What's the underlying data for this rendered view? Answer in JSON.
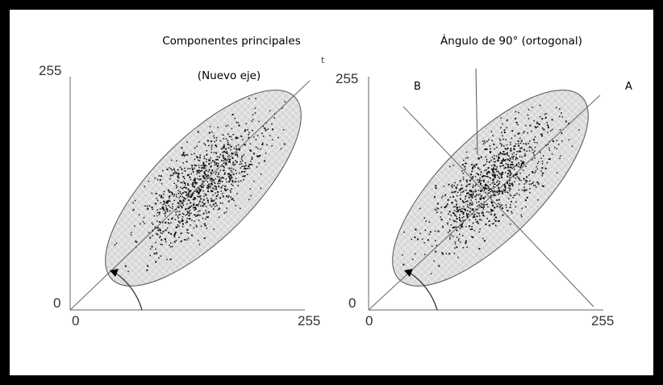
{
  "left_panel": {
    "title": "Componentes principales",
    "subtitle": "(Nuevo eje)",
    "axis_max_y": "255",
    "axis_min": "0",
    "axis_zero_x": "0",
    "axis_max_x": "255"
  },
  "right_panel": {
    "title": "Ángulo de 90° (ortogonal)",
    "label_b": "B",
    "label_a": "A",
    "axis_max_y": "255",
    "axis_min": "0",
    "axis_zero_x": "0",
    "axis_max_x": "255"
  },
  "stray_mark": "t",
  "colors": {
    "frame": "#000000",
    "ellipse_fill": "#d8d8d8",
    "points": "#111111",
    "axes": "#666666"
  }
}
